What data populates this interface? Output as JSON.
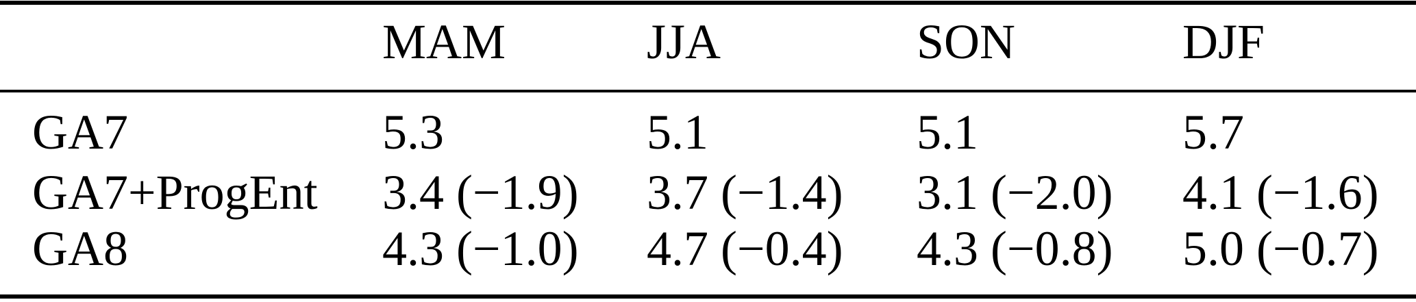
{
  "table": {
    "columns": [
      "MAM",
      "JJA",
      "SON",
      "DJF"
    ],
    "rows": [
      {
        "label": "GA7",
        "values": [
          "5.3",
          "5.1",
          "5.1",
          "5.7"
        ]
      },
      {
        "label": "GA7+ProgEnt",
        "values": [
          "3.4 (−1.9)",
          "3.7 (−1.4)",
          "3.1 (−2.0)",
          "4.1 (−1.6)"
        ]
      },
      {
        "label": "GA8",
        "values": [
          "4.3 (−1.0)",
          "4.7 (−0.4)",
          "4.3 (−0.8)",
          "5.0 (−0.7)"
        ]
      }
    ],
    "text_color": "#000000",
    "rule_color": "#000000"
  }
}
